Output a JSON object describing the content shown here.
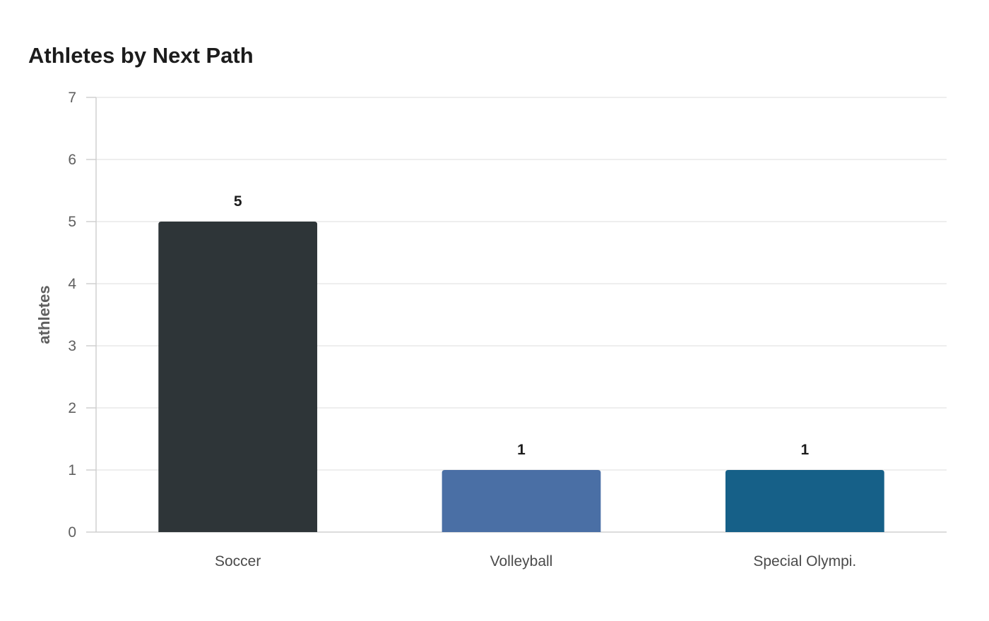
{
  "chart_data": {
    "type": "bar",
    "title": "Athletes by Next Path",
    "xlabel": "",
    "ylabel": "athletes",
    "categories": [
      "Soccer",
      "Volleyball",
      "Special Olympi."
    ],
    "values": [
      5,
      1,
      1
    ],
    "colors": [
      "#2e3538",
      "#4a6fa5",
      "#166088"
    ],
    "ylim": [
      0,
      7
    ],
    "yticks": [
      0,
      1,
      2,
      3,
      4,
      5,
      6,
      7
    ],
    "data_labels": true,
    "grid": true,
    "legend": "none"
  }
}
